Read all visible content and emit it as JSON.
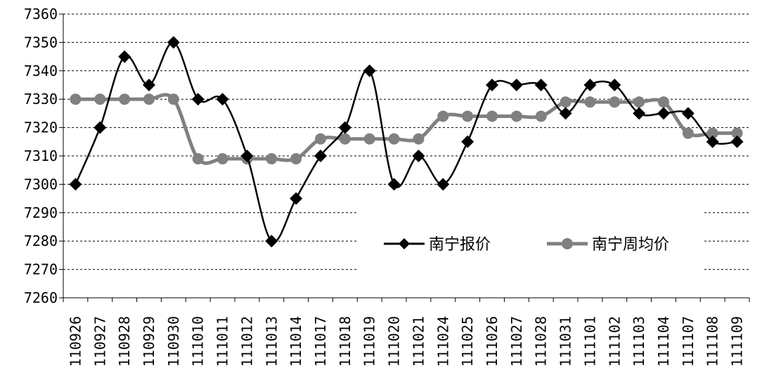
{
  "chart_data": {
    "type": "line",
    "title": "",
    "xlabel": "",
    "ylabel": "",
    "ylim": [
      7260,
      7360
    ],
    "yticks": [
      7260,
      7270,
      7280,
      7290,
      7300,
      7310,
      7320,
      7330,
      7340,
      7350,
      7360
    ],
    "grid": "horizontal dashed",
    "legend_position": "bottom-right",
    "categories": [
      "110926",
      "110927",
      "110928",
      "110929",
      "110930",
      "111010",
      "111011",
      "111012",
      "111013",
      "111014",
      "111017",
      "111018",
      "111019",
      "111020",
      "111021",
      "111024",
      "111025",
      "111026",
      "111027",
      "111028",
      "111031",
      "111101",
      "111102",
      "111103",
      "111104",
      "111107",
      "111108",
      "111109"
    ],
    "series": [
      {
        "name": "南宁报价",
        "color": "#000000",
        "marker": "diamond",
        "values": [
          7300,
          7320,
          7345,
          7335,
          7350,
          7330,
          7330,
          7310,
          7280,
          7295,
          7310,
          7320,
          7340,
          7300,
          7310,
          7300,
          7315,
          7335,
          7335,
          7335,
          7325,
          7335,
          7335,
          7325,
          7325,
          7325,
          7315,
          7315
        ]
      },
      {
        "name": "南宁周均价",
        "color": "#808080",
        "marker": "circle",
        "values": [
          7330,
          7330,
          7330,
          7330,
          7330,
          7309,
          7309,
          7309,
          7309,
          7309,
          7316,
          7316,
          7316,
          7316,
          7316,
          7324,
          7324,
          7324,
          7324,
          7324,
          7329,
          7329,
          7329,
          7329,
          7329,
          7318,
          7318,
          7318
        ]
      }
    ]
  }
}
